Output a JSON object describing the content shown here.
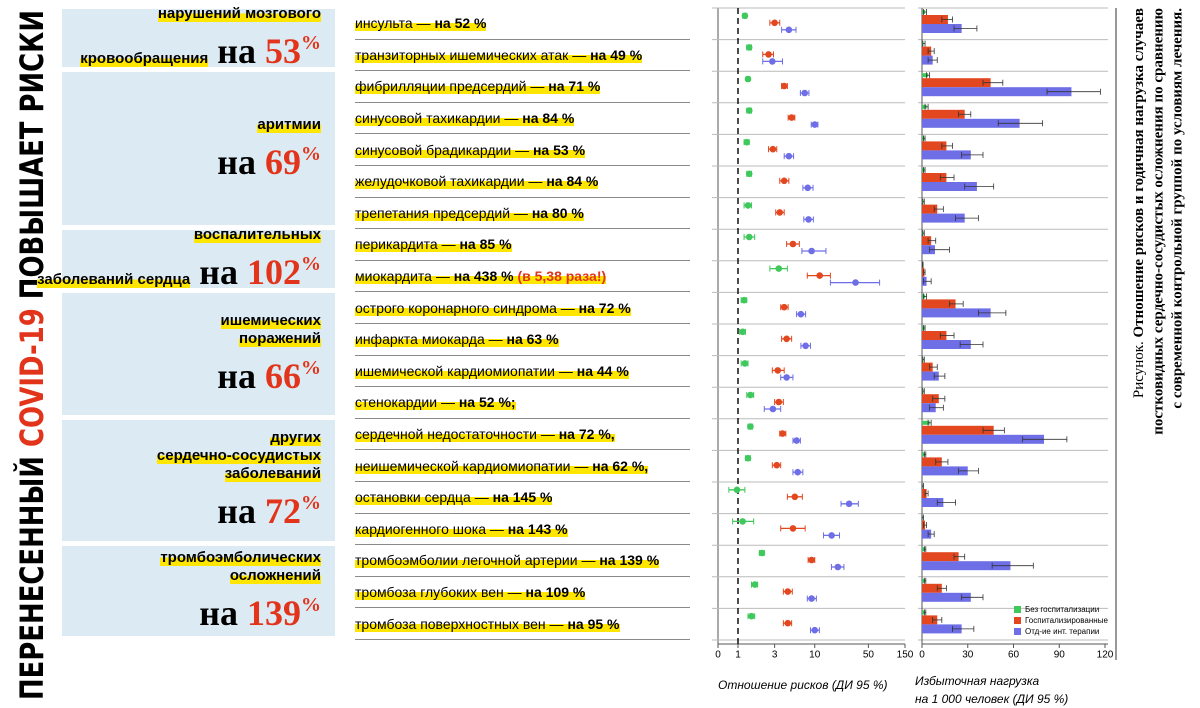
{
  "title": {
    "prefix": "ПЕРЕНЕСЕННЫЙ",
    "highlight": "COVID-19",
    "suffix": "ПОВЫШАЕТ РИСКИ"
  },
  "groups": [
    {
      "label": [
        "нарушений мозгового",
        "кровообращения"
      ],
      "prefix": "на",
      "value": "53",
      "unit": "%",
      "rows": [
        {
          "label": "инсульта —",
          "effect": "на 52 %"
        },
        {
          "label": "транзиторных ишемических атак —",
          "effect": "на 49 %"
        }
      ]
    },
    {
      "label": [
        "аритмии"
      ],
      "prefix": "на",
      "value": "69",
      "unit": "%",
      "rows": [
        {
          "label": "фибрилляции предсердий —",
          "effect": "на 71 %"
        },
        {
          "label": "синусовой тахикардии —",
          "effect": "на 84 %"
        },
        {
          "label": "синусовой брадикардии —",
          "effect": "на 53 %"
        },
        {
          "label": "желудочковой тахикардии —",
          "effect": "на 84 %"
        },
        {
          "label": "трепетания предсердий —",
          "effect": "на 80 %"
        }
      ]
    },
    {
      "label": [
        "воспалительных",
        "заболеваний сердца"
      ],
      "prefix": "на",
      "value": "102",
      "unit": "%",
      "rows": [
        {
          "label": "перикардита —",
          "effect": "на 85 %"
        },
        {
          "label": "миокардита —",
          "effect": "на 438 %",
          "note": "(в 5,38 раза!)"
        }
      ]
    },
    {
      "label": [
        "ишемических",
        "поражений"
      ],
      "prefix": "на",
      "value": "66",
      "unit": "%",
      "rows": [
        {
          "label": "острого коронарного синдрома —",
          "effect": "на 72 %"
        },
        {
          "label": "инфаркта миокарда —",
          "effect": "на 63 %"
        },
        {
          "label": "ишемической кардиомиопатии —",
          "effect": "на 44 %"
        },
        {
          "label": "стенокардии —",
          "effect": "на 52 %;"
        }
      ]
    },
    {
      "label": [
        "других",
        "сердечно-сосудистых",
        "заболеваний"
      ],
      "prefix": "на",
      "value": "72",
      "unit": "%",
      "rows": [
        {
          "label": "сердечной недостаточности —",
          "effect": "на 72 %,"
        },
        {
          "label": "неишемической кардиомиопатии —",
          "effect": "на 62 %,"
        },
        {
          "label": "остановки сердца —",
          "effect": "на 145 %"
        },
        {
          "label": "кардиогенного шока —",
          "effect": "на 143 %"
        }
      ]
    },
    {
      "label": [
        "тромбоэмболических",
        "осложнений"
      ],
      "prefix": "на",
      "value": "139",
      "unit": "%",
      "rows": [
        {
          "label": "тромбоэмболии легочной артерии —",
          "effect": "на 139 %"
        },
        {
          "label": "тромбоза глубоких вен —",
          "effect": "на 109 %"
        },
        {
          "label": "тромбоза поверхностных вен —",
          "effect": "на 95 %"
        }
      ]
    }
  ],
  "chart_data": [
    {
      "type": "forest",
      "xscale": "log",
      "xlim": [
        0,
        150
      ],
      "xticks": [
        0,
        1,
        3,
        10,
        50,
        150
      ],
      "reference_line": 1,
      "xlabel": "Отношение рисков (ДИ 95 %)",
      "series": [
        {
          "color": "#3fc85c",
          "values": [
            1.23,
            1.4,
            1.35,
            1.4,
            1.3,
            1.4,
            1.35,
            1.4,
            3.4,
            1.2,
            1.15,
            1.23,
            1.45,
            1.45,
            1.35,
            0.97,
            1.15,
            2.05,
            1.66,
            1.5
          ],
          "lower": [
            1.15,
            1.3,
            1.28,
            1.3,
            1.2,
            1.3,
            1.2,
            1.2,
            2.6,
            1.1,
            1.05,
            1.1,
            1.3,
            1.35,
            1.25,
            0.76,
            0.85,
            1.9,
            1.5,
            1.35
          ],
          "upper": [
            1.3,
            1.5,
            1.42,
            1.5,
            1.4,
            1.5,
            1.5,
            1.65,
            4.4,
            1.3,
            1.25,
            1.35,
            1.6,
            1.55,
            1.45,
            1.23,
            1.6,
            2.2,
            1.8,
            1.65
          ]
        },
        {
          "color": "#e2471f",
          "values": [
            3.0,
            2.5,
            4.0,
            5.0,
            2.85,
            4.0,
            3.5,
            5.2,
            11.6,
            4.0,
            4.3,
            3.3,
            3.4,
            3.8,
            3.2,
            5.5,
            5.2,
            9.1,
            4.45,
            4.45
          ],
          "lower": [
            2.6,
            2.1,
            3.7,
            4.5,
            2.5,
            3.5,
            3.1,
            4.3,
            8,
            3.6,
            3.7,
            2.8,
            3.0,
            3.5,
            2.8,
            4.4,
            3.6,
            8.2,
            3.9,
            3.9
          ],
          "upper": [
            3.5,
            2.9,
            4.4,
            5.5,
            3.2,
            4.6,
            4.0,
            6.3,
            16,
            4.5,
            5.0,
            4.0,
            3.9,
            4.2,
            3.6,
            6.9,
            7.5,
            10,
            5.1,
            5.0
          ]
        },
        {
          "color": "#6e6ee6",
          "values": [
            4.6,
            2.8,
            7.4,
            10,
            4.6,
            8.1,
            8.3,
            9.1,
            34,
            6.6,
            7.6,
            4.3,
            2.85,
            5.8,
            6.0,
            28,
            16.6,
            20,
            9.1,
            10
          ],
          "lower": [
            3.7,
            2.1,
            6.5,
            9,
            4.0,
            7,
            7.2,
            6.8,
            16,
            5.8,
            6.6,
            3.6,
            2.2,
            5.2,
            5.2,
            22,
            13,
            16.5,
            8,
            8.8
          ],
          "upper": [
            5.7,
            3.8,
            8.4,
            11,
            5.3,
            9.5,
            9.6,
            14,
            70,
            7.6,
            8.8,
            5.2,
            3.6,
            6.5,
            7.0,
            37,
            21,
            24,
            10.5,
            11.5
          ]
        }
      ]
    },
    {
      "type": "bar",
      "orientation": "horizontal",
      "xlim": [
        0,
        120
      ],
      "xticks": [
        0,
        30,
        60,
        90,
        120
      ],
      "legend": "bottom-right",
      "xlabel": [
        "Избыточная нагрузка",
        "на 1 000 человек (ДИ 95 %)"
      ],
      "series": [
        {
          "name": "Без госпитализации",
          "color": "#3fc85c",
          "values": [
            2,
            1,
            4,
            3,
            1.5,
            1.5,
            1,
            1,
            0.5,
            2,
            1.5,
            1,
            1,
            5,
            2,
            0.5,
            0.5,
            2,
            2,
            2
          ],
          "lower": [
            1,
            0.5,
            3,
            2,
            1,
            1,
            0.5,
            0.5,
            0.3,
            1,
            1,
            0.5,
            0.5,
            4,
            1.5,
            0,
            0,
            1.5,
            1.5,
            1.5
          ],
          "upper": [
            3,
            2,
            5,
            4,
            2,
            2,
            1.5,
            1.5,
            0.7,
            3,
            2,
            1.5,
            1.5,
            6,
            2.5,
            1,
            1,
            2.5,
            2.5,
            2.5
          ]
        },
        {
          "name": "Госпитализированные",
          "color": "#e2471f",
          "values": [
            17,
            6,
            45,
            28,
            16,
            16,
            10,
            6,
            1.5,
            22,
            16,
            7,
            11,
            47,
            13,
            3,
            2,
            24,
            13,
            10
          ],
          "lower": [
            13,
            4,
            40,
            24,
            13,
            12,
            8,
            4,
            1,
            18,
            12,
            5,
            7,
            40,
            9,
            2,
            1,
            21,
            10,
            7
          ],
          "upper": [
            20,
            8,
            53,
            32,
            20,
            21,
            14,
            9,
            2,
            27,
            21,
            10,
            15,
            54,
            17,
            4,
            3,
            28,
            16,
            13
          ]
        },
        {
          "name": "Отд-ие инт. терапии",
          "color": "#6e6ee6",
          "values": [
            26,
            7,
            98,
            64,
            32,
            36,
            28,
            8.5,
            3,
            45,
            32,
            11,
            9,
            80,
            30,
            14,
            6,
            58,
            32,
            26
          ],
          "lower": [
            21,
            4,
            82,
            50,
            26,
            28,
            22,
            5,
            1,
            37,
            25,
            8,
            5,
            66,
            24,
            10,
            4,
            46,
            26,
            20
          ],
          "upper": [
            36,
            10,
            117,
            79,
            40,
            47,
            37,
            18,
            6,
            55,
            40,
            15,
            14,
            95,
            37,
            22,
            8,
            73,
            40,
            34
          ]
        }
      ]
    }
  ],
  "caption": {
    "lead": "Рисунок.",
    "lines": [
      "Отношение рисков и годичная нагрузка случаев",
      "постковидных сердечно-сосудистых осложнения по сравнению",
      "с современной контрольной группой по условиям лечения."
    ]
  }
}
